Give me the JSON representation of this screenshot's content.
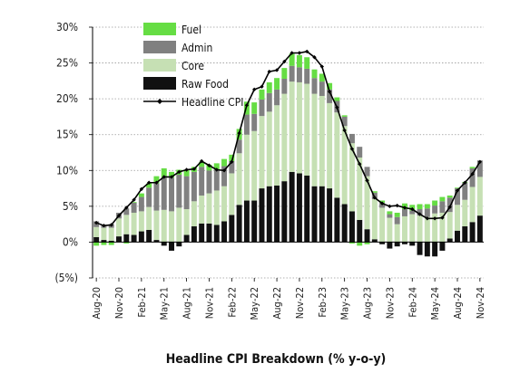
{
  "chart_data": {
    "type": "bar",
    "subtype": "stacked-bar-with-line",
    "title": "Headline CPI Breakdown (% y-o-y)",
    "ylim": [
      -5,
      30
    ],
    "y_ticks": [
      -5,
      0,
      5,
      10,
      15,
      20,
      25,
      30
    ],
    "y_tick_labels": [
      "(5%)",
      "0%",
      "5%",
      "10%",
      "15%",
      "20%",
      "25%",
      "30%"
    ],
    "grid": "horizontal-dotted",
    "legend_position": "top-left",
    "legend": [
      "Fuel",
      "Admin",
      "Core",
      "Raw Food",
      "Headline CPI"
    ],
    "x_tick_labels": [
      "Aug-20",
      "Nov-20",
      "Feb-21",
      "May-21",
      "Aug-21",
      "Nov-21",
      "Feb-22",
      "May-22",
      "Aug-22",
      "Nov-22",
      "Feb-23",
      "May-23",
      "Aug-23",
      "Nov-23",
      "Feb-24",
      "May-24",
      "Aug-24",
      "Nov-24"
    ],
    "x_tick_every": 3,
    "categories": [
      "Aug-20",
      "Sep-20",
      "Oct-20",
      "Nov-20",
      "Dec-20",
      "Jan-21",
      "Feb-21",
      "Mar-21",
      "Apr-21",
      "May-21",
      "Jun-21",
      "Jul-21",
      "Aug-21",
      "Sep-21",
      "Oct-21",
      "Nov-21",
      "Dec-21",
      "Jan-22",
      "Feb-22",
      "Mar-22",
      "Apr-22",
      "May-22",
      "Jun-22",
      "Jul-22",
      "Aug-22",
      "Sep-22",
      "Oct-22",
      "Nov-22",
      "Dec-22",
      "Jan-23",
      "Feb-23",
      "Mar-23",
      "Apr-23",
      "May-23",
      "Jun-23",
      "Jul-23",
      "Aug-23",
      "Sep-23",
      "Oct-23",
      "Nov-23",
      "Dec-23",
      "Jan-24",
      "Feb-24",
      "Mar-24",
      "Apr-24",
      "May-24",
      "Jun-24",
      "Jul-24",
      "Aug-24",
      "Sep-24",
      "Oct-24",
      "Nov-24"
    ],
    "series": [
      {
        "name": "Raw Food",
        "color": "#111111",
        "values": [
          0.7,
          0.3,
          0.2,
          0.8,
          1.1,
          1.0,
          1.5,
          1.7,
          0.3,
          -0.5,
          -1.2,
          -0.6,
          1.0,
          2.2,
          2.6,
          2.6,
          2.4,
          2.9,
          3.8,
          5.2,
          5.8,
          5.8,
          7.5,
          7.8,
          7.9,
          8.5,
          9.8,
          9.6,
          9.3,
          7.8,
          7.8,
          7.5,
          6.2,
          5.3,
          4.3,
          3.1,
          1.8,
          0.4,
          -0.3,
          -0.9,
          -0.6,
          -0.3,
          -0.5,
          -1.8,
          -2.0,
          -2.0,
          -1.2,
          0.5,
          1.6,
          2.2,
          2.8,
          3.7
        ]
      },
      {
        "name": "Core",
        "color": "#c6e0b4",
        "values": [
          1.4,
          1.7,
          1.8,
          2.5,
          2.7,
          3.1,
          2.8,
          3.2,
          4.1,
          4.5,
          4.3,
          4.8,
          3.6,
          3.5,
          3.9,
          4.2,
          4.8,
          4.9,
          5.8,
          7.2,
          9.2,
          9.7,
          10.1,
          10.4,
          11.2,
          12.2,
          12.6,
          12.7,
          12.8,
          12.9,
          12.6,
          11.9,
          11.9,
          10.9,
          9.5,
          8.7,
          7.4,
          5.6,
          4.8,
          3.4,
          2.5,
          3.6,
          3.9,
          3.7,
          3.5,
          4.0,
          4.1,
          3.7,
          3.6,
          3.7,
          4.9,
          5.4
        ]
      },
      {
        "name": "Admin",
        "color": "#808080",
        "values": [
          0.8,
          0.4,
          0.5,
          0.8,
          0.9,
          1.4,
          2.0,
          2.7,
          3.8,
          4.5,
          4.7,
          4.6,
          4.6,
          4.1,
          4.0,
          3.2,
          2.9,
          2.8,
          1.7,
          1.9,
          2.8,
          2.4,
          2.3,
          2.6,
          2.2,
          2.1,
          2.2,
          2.1,
          2.1,
          2.2,
          2.0,
          1.9,
          1.6,
          1.3,
          1.3,
          1.5,
          1.3,
          0.9,
          0.7,
          0.5,
          1.0,
          1.0,
          0.5,
          0.9,
          1.2,
          1.1,
          1.6,
          2.0,
          2.3,
          2.4,
          2.6,
          2.3
        ]
      },
      {
        "name": "Fuel",
        "color": "#66dd44",
        "values": [
          -0.5,
          -0.4,
          -0.4,
          0,
          -0.2,
          0.1,
          0.5,
          0.6,
          1.0,
          1.3,
          0.8,
          0.7,
          0.9,
          0.7,
          0.7,
          0.8,
          0.9,
          1.0,
          0.9,
          1.5,
          1.8,
          1.6,
          1.4,
          1.5,
          1.6,
          1.5,
          1.7,
          1.7,
          1.6,
          1.2,
          1.1,
          0.9,
          0.5,
          0.2,
          -0.2,
          -0.5,
          -0.3,
          0.2,
          0.3,
          0.4,
          0.6,
          0.8,
          0.8,
          0.7,
          0.6,
          0.7,
          0.6,
          0.3,
          0.1,
          0.1,
          0.2,
          0.0
        ]
      },
      {
        "name": "Headline CPI",
        "type": "line",
        "color": "#000000",
        "values": [
          2.7,
          2.3,
          2.4,
          3.7,
          4.8,
          5.9,
          7.4,
          8.3,
          8.3,
          9.1,
          9.1,
          9.8,
          10.1,
          10.2,
          11.3,
          10.7,
          10.1,
          10.0,
          11.2,
          15.2,
          19.1,
          21.3,
          21.7,
          23.8,
          24.0,
          25.2,
          26.4,
          26.4,
          26.6,
          25.8,
          24.5,
          21.0,
          18.8,
          15.6,
          13.0,
          10.9,
          8.6,
          6.2,
          5.4,
          5.0,
          5.1,
          4.8,
          4.6,
          3.9,
          3.3,
          3.3,
          3.4,
          4.9,
          7.2,
          8.3,
          9.5,
          11.2
        ]
      }
    ]
  }
}
